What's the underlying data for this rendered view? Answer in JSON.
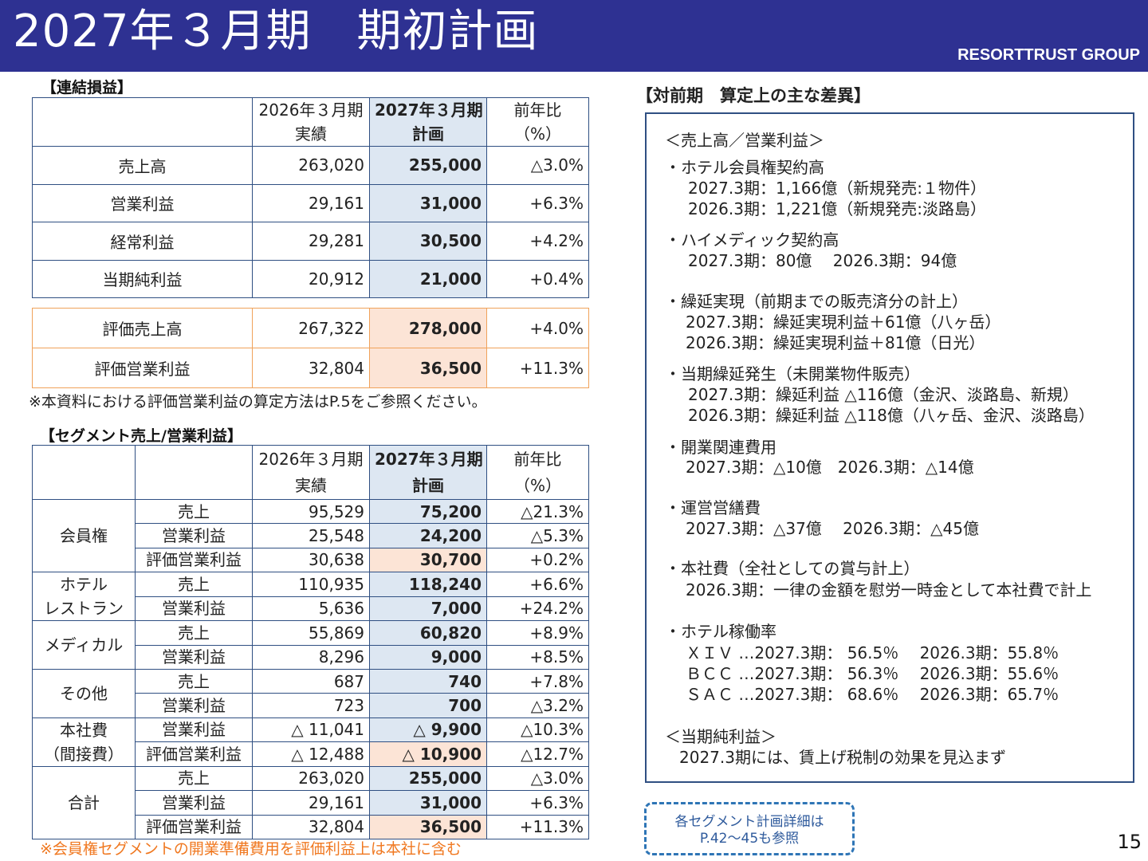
{
  "header": {
    "title": "2027年３月期　期初計画",
    "brand": "RESORTTRUST GROUP"
  },
  "pl": {
    "label": "【連結損益】",
    "head": {
      "c1a": "2026年３月期",
      "c1b": "実績",
      "c2a": "2027年３月期",
      "c2b": "計画",
      "c3a": "前年比",
      "c3b": "（%）"
    },
    "rows": [
      {
        "name": "売上高",
        "prev": "263,020",
        "plan": "255,000",
        "yoy": "△3.0%"
      },
      {
        "name": "営業利益",
        "prev": "29,161",
        "plan": "31,000",
        "yoy": "+6.3%"
      },
      {
        "name": "経常利益",
        "prev": "29,281",
        "plan": "30,500",
        "yoy": "+4.2%"
      },
      {
        "name": "当期純利益",
        "prev": "20,912",
        "plan": "21,000",
        "yoy": "+0.4%"
      }
    ],
    "eval_rows": [
      {
        "name": "評価売上高",
        "prev": "267,322",
        "plan": "278,000",
        "yoy": "+4.0%"
      },
      {
        "name": "評価営業利益",
        "prev": "32,804",
        "plan": "36,500",
        "yoy": "+11.3%"
      }
    ],
    "note": "※本資料における評価営業利益の算定方法はP.5をご参照ください。"
  },
  "seg": {
    "label": "【セグメント売上/営業利益】",
    "head": {
      "c1a": "2026年３月期",
      "c1b": "実績",
      "c2a": "2027年３月期",
      "c2b": "計画",
      "c3a": "前年比",
      "c3b": "（%）"
    },
    "groups": {
      "membership": {
        "l1": "会員権",
        "rows": [
          {
            "item": "売上",
            "prev": "95,529",
            "plan": "75,200",
            "yoy": "△21.3%"
          },
          {
            "item": "営業利益",
            "prev": "25,548",
            "plan": "24,200",
            "yoy": "△5.3%"
          },
          {
            "item": "評価営業利益",
            "prev": "30,638",
            "plan": "30,700",
            "yoy": "+0.2%"
          }
        ]
      },
      "hotel": {
        "l1": "ホテル",
        "l2": "レストラン",
        "rows": [
          {
            "item": "売上",
            "prev": "110,935",
            "plan": "118,240",
            "yoy": "+6.6%"
          },
          {
            "item": "営業利益",
            "prev": "5,636",
            "plan": "7,000",
            "yoy": "+24.2%"
          }
        ]
      },
      "medical": {
        "l1": "メディカル",
        "rows": [
          {
            "item": "売上",
            "prev": "55,869",
            "plan": "60,820",
            "yoy": "+8.9%"
          },
          {
            "item": "営業利益",
            "prev": "8,296",
            "plan": "9,000",
            "yoy": "+8.5%"
          }
        ]
      },
      "other": {
        "l1": "その他",
        "rows": [
          {
            "item": "売上",
            "prev": "687",
            "plan": "740",
            "yoy": "+7.8%"
          },
          {
            "item": "営業利益",
            "prev": "723",
            "plan": "700",
            "yoy": "△3.2%"
          }
        ]
      },
      "hq": {
        "l1": "本社費",
        "l2": "（間接費）",
        "rows": [
          {
            "item": "営業利益",
            "prev": "△ 11,041",
            "plan": "△ 9,900",
            "yoy": "△10.3%"
          },
          {
            "item": "評価営業利益",
            "prev": "△ 12,488",
            "plan": "△ 10,900",
            "yoy": "△12.7%"
          }
        ]
      },
      "total": {
        "l1": "合計",
        "rows": [
          {
            "item": "売上",
            "prev": "263,020",
            "plan": "255,000",
            "yoy": "△3.0%"
          },
          {
            "item": "営業利益",
            "prev": "29,161",
            "plan": "31,000",
            "yoy": "+6.3%"
          },
          {
            "item": "評価営業利益",
            "prev": "32,804",
            "plan": "36,500",
            "yoy": "+11.3%"
          }
        ]
      }
    },
    "note": "※会員権セグメントの開業準備費用を評価利益上は本社に含む"
  },
  "diff": {
    "title": "【対前期　算定上の主な差異】",
    "lines": [
      "＜売上高／営業利益＞",
      "・ホテル会員権契約高",
      "2027.3期：1,166億（新規発売:１物件）",
      "2026.3期：1,221億（新規発売:淡路島）",
      "・ハイメディック契約高",
      "2027.3期：80億　 2026.3期：94億",
      "・繰延実現（前期までの販売済分の計上）",
      "2027.3期：繰延実現利益＋61億（八ヶ岳）",
      "2026.3期：繰延実現利益＋81億（日光）",
      "・当期繰延発生（未開業物件販売）",
      "2027.3期：繰延利益 △116億（金沢、淡路島、新規）",
      "2026.3期：繰延利益 △118億（八ヶ岳、金沢、淡路島）",
      "・開業関連費用",
      "2027.3期：△10億　2026.3期：△14億",
      "・運営営繕費",
      "2027.3期：△37億　 2026.3期：△45億",
      "・本社費（全社としての賞与計上）",
      "2026.3期：一律の金額を慰労一時金として本社費で計上",
      "・ホテル稼働率",
      "ＸＩＶ …2027.3期： 56.5％　 2026.3期：55.8％",
      "ＢＣＣ …2027.3期： 56.3％　 2026.3期：55.6％",
      "ＳＡＣ …2027.3期： 68.6％　 2026.3期：65.7％",
      "＜当期純利益＞",
      "2027.3期には、賃上げ税制の効果を見込まず"
    ]
  },
  "callout": {
    "line1": "各セグメント計画詳細は",
    "line2": "P.42～45も参照"
  },
  "page_number": "15"
}
